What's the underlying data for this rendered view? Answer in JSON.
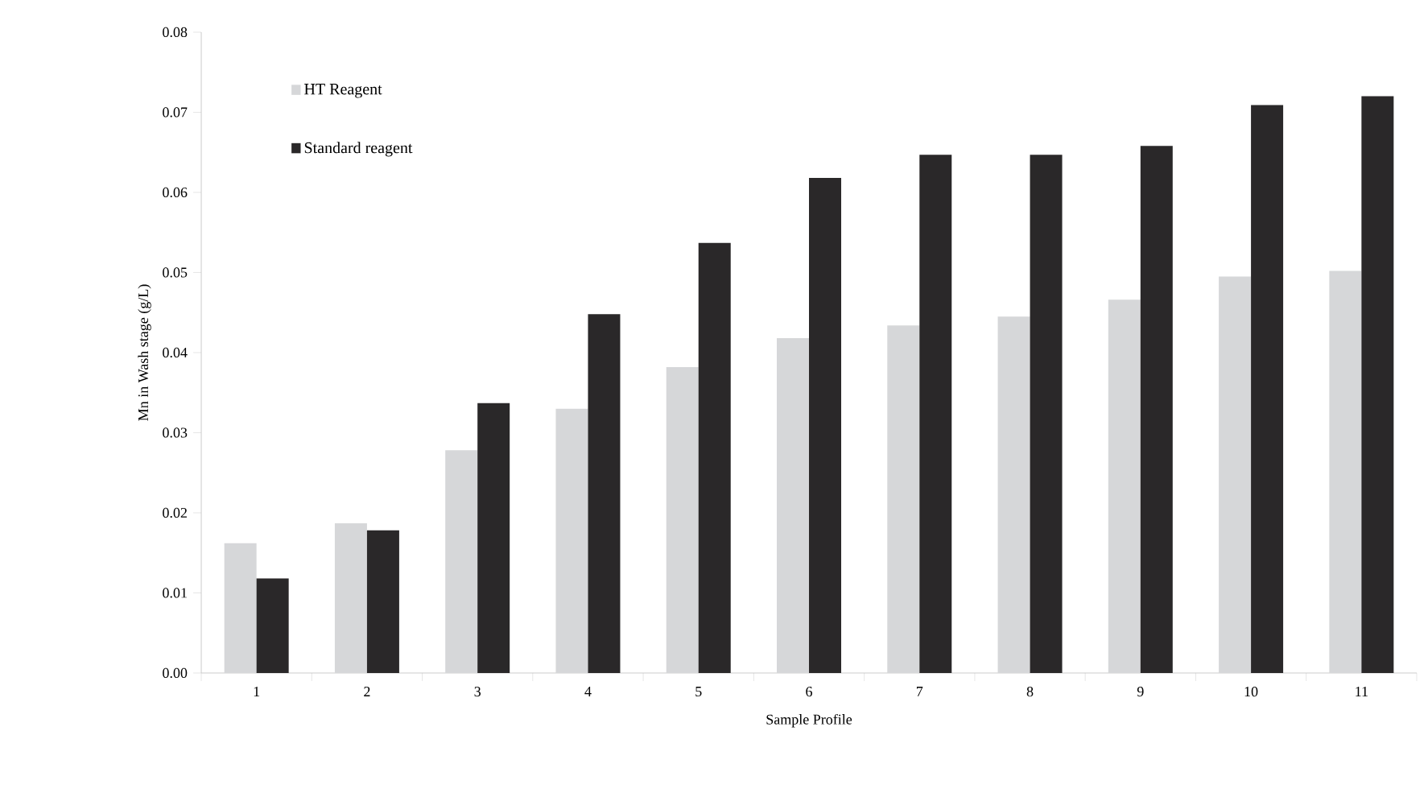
{
  "chart_data": {
    "type": "bar",
    "xlabel": "Sample Profile",
    "ylabel": "Mn in Wash stage (g/L)",
    "categories": [
      "1",
      "2",
      "3",
      "4",
      "5",
      "6",
      "7",
      "8",
      "9",
      "10",
      "11"
    ],
    "series": [
      {
        "name": "HT Reagent",
        "color": "#d6d7d9",
        "values": [
          0.0162,
          0.0187,
          0.0278,
          0.033,
          0.0382,
          0.0418,
          0.0434,
          0.0445,
          0.0466,
          0.0495,
          0.0502
        ]
      },
      {
        "name": "Standard reagent",
        "color": "#2a2829",
        "values": [
          0.0118,
          0.0178,
          0.0337,
          0.0448,
          0.0537,
          0.0618,
          0.0647,
          0.0647,
          0.0658,
          0.0709,
          0.072
        ]
      }
    ],
    "ylim": [
      0,
      0.08
    ],
    "yticks": [
      {
        "value": 0,
        "label": "0.00"
      },
      {
        "value": 0.01,
        "label": "0.01"
      },
      {
        "value": 0.02,
        "label": "0.02"
      },
      {
        "value": 0.03,
        "label": "0.03"
      },
      {
        "value": 0.04,
        "label": "0.04"
      },
      {
        "value": 0.05,
        "label": "0.05"
      },
      {
        "value": 0.06,
        "label": "0.06"
      },
      {
        "value": 0.07,
        "label": "0.07"
      },
      {
        "value": 0.08,
        "label": "0.08"
      }
    ],
    "grid": false,
    "legend": "top left"
  }
}
